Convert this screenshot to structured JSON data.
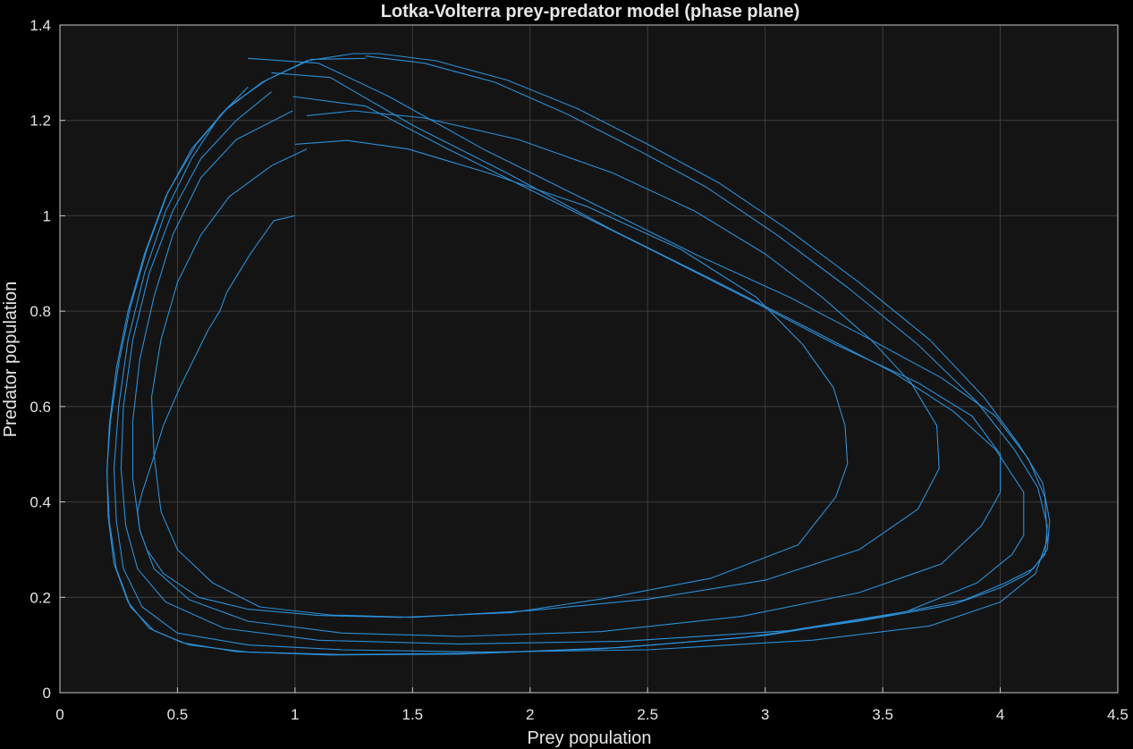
{
  "chart_data": {
    "type": "line",
    "title": "Lotka-Volterra prey-predator model (phase plane)",
    "xlabel": "Prey population",
    "ylabel": "Predator population",
    "xlim": [
      0,
      4.5
    ],
    "ylim": [
      0,
      1.4
    ],
    "xticks": [
      "0",
      "0.5",
      "1",
      "1.5",
      "2",
      "2.5",
      "3",
      "3.5",
      "4",
      "4.5"
    ],
    "yticks": [
      "0",
      "0.2",
      "0.4",
      "0.6",
      "0.8",
      "1",
      "1.2",
      "1.4"
    ],
    "grid": true,
    "legend": "none",
    "colors": {
      "background": "#000000",
      "axes_background": "#141414",
      "grid": "#3c3c3c",
      "axis_frame": "#c8c8c8",
      "series": "#2c8ed6"
    },
    "series": [
      {
        "x": [
          1.0,
          0.91,
          0.81,
          0.71,
          0.68,
          0.63,
          0.58,
          0.51,
          0.44,
          0.39,
          0.35,
          0.33,
          0.34,
          0.37,
          0.44,
          0.59,
          0.8,
          1.1,
          1.45,
          1.92,
          2.32,
          2.77,
          3.14,
          3.3,
          3.35,
          3.34,
          3.29,
          3.16,
          2.96,
          2.64,
          2.24,
          1.82,
          1.48,
          1.22,
          1.0
        ],
        "y": [
          1.0,
          0.99,
          0.92,
          0.84,
          0.8,
          0.76,
          0.71,
          0.64,
          0.56,
          0.48,
          0.42,
          0.38,
          0.34,
          0.3,
          0.25,
          0.2,
          0.175,
          0.162,
          0.158,
          0.168,
          0.198,
          0.24,
          0.31,
          0.41,
          0.48,
          0.56,
          0.64,
          0.73,
          0.83,
          0.93,
          1.02,
          1.09,
          1.14,
          1.158,
          1.15
        ]
      },
      {
        "x": [
          1.05,
          0.9,
          0.72,
          0.6,
          0.5,
          0.43,
          0.39,
          0.4,
          0.43,
          0.5,
          0.65,
          0.85,
          1.15,
          1.5,
          2.0,
          2.5,
          3.0,
          3.4,
          3.65,
          3.74,
          3.73,
          3.62,
          3.45,
          3.24,
          3.0,
          2.7,
          2.35,
          1.95,
          1.55,
          1.25,
          1.05
        ],
        "y": [
          1.14,
          1.105,
          1.04,
          0.96,
          0.86,
          0.74,
          0.62,
          0.5,
          0.38,
          0.3,
          0.23,
          0.18,
          0.163,
          0.158,
          0.172,
          0.196,
          0.236,
          0.3,
          0.385,
          0.47,
          0.56,
          0.65,
          0.74,
          0.83,
          0.92,
          1.01,
          1.09,
          1.16,
          1.205,
          1.22,
          1.21
        ]
      },
      {
        "x": [
          0.99,
          0.75,
          0.6,
          0.48,
          0.4,
          0.34,
          0.31,
          0.31,
          0.34,
          0.4,
          0.55,
          0.8,
          1.2,
          1.7,
          2.3,
          2.9,
          3.4,
          3.75,
          3.92,
          4.0,
          4.0,
          3.88,
          3.65,
          3.3,
          2.95,
          2.55,
          2.1,
          1.65,
          1.3,
          0.99
        ],
        "y": [
          1.22,
          1.16,
          1.08,
          0.96,
          0.83,
          0.7,
          0.57,
          0.45,
          0.34,
          0.26,
          0.195,
          0.15,
          0.125,
          0.118,
          0.128,
          0.16,
          0.21,
          0.27,
          0.35,
          0.42,
          0.5,
          0.58,
          0.65,
          0.73,
          0.82,
          0.92,
          1.03,
          1.14,
          1.23,
          1.25
        ]
      },
      {
        "x": [
          0.9,
          0.75,
          0.6,
          0.48,
          0.38,
          0.31,
          0.27,
          0.26,
          0.28,
          0.33,
          0.45,
          0.7,
          1.1,
          1.7,
          2.4,
          3.1,
          3.6,
          3.9,
          4.05,
          4.1,
          4.1,
          3.98,
          3.8,
          3.55,
          3.2,
          2.8,
          2.35,
          1.9,
          1.5,
          1.15,
          0.9
        ],
        "y": [
          1.26,
          1.2,
          1.12,
          1.01,
          0.88,
          0.74,
          0.6,
          0.47,
          0.35,
          0.26,
          0.19,
          0.135,
          0.11,
          0.102,
          0.108,
          0.13,
          0.17,
          0.23,
          0.29,
          0.33,
          0.42,
          0.51,
          0.59,
          0.67,
          0.76,
          0.86,
          0.97,
          1.09,
          1.19,
          1.29,
          1.3
        ]
      },
      {
        "x": [
          0.8,
          0.68,
          0.56,
          0.45,
          0.36,
          0.29,
          0.25,
          0.23,
          0.24,
          0.27,
          0.35,
          0.5,
          0.8,
          1.2,
          1.8,
          2.5,
          3.2,
          3.7,
          4.0,
          4.15,
          4.2,
          4.19,
          4.12,
          3.98,
          3.75,
          3.45,
          3.1,
          2.7,
          2.25,
          1.8,
          1.4,
          1.1,
          0.8
        ],
        "y": [
          1.27,
          1.21,
          1.12,
          1.01,
          0.88,
          0.74,
          0.6,
          0.47,
          0.36,
          0.26,
          0.18,
          0.125,
          0.1,
          0.09,
          0.085,
          0.09,
          0.11,
          0.14,
          0.19,
          0.25,
          0.32,
          0.41,
          0.49,
          0.58,
          0.66,
          0.74,
          0.83,
          0.92,
          1.03,
          1.14,
          1.25,
          1.32,
          1.33
        ]
      },
      {
        "x": [
          1.36,
          1.6,
          1.9,
          2.2,
          2.5,
          2.8,
          3.1,
          3.4,
          3.7,
          3.93,
          4.08,
          4.18,
          4.21,
          4.2,
          4.14,
          4.02,
          3.85,
          3.5,
          3.0,
          2.4,
          1.8,
          1.2,
          0.8,
          0.55,
          0.4,
          0.3,
          0.24,
          0.21,
          0.2,
          0.21,
          0.24,
          0.29,
          0.36,
          0.45,
          0.56,
          0.7,
          0.86,
          1.05,
          1.25,
          1.36
        ],
        "y": [
          1.34,
          1.325,
          1.285,
          1.225,
          1.15,
          1.07,
          0.97,
          0.86,
          0.74,
          0.62,
          0.52,
          0.44,
          0.36,
          0.3,
          0.26,
          0.23,
          0.195,
          0.16,
          0.12,
          0.095,
          0.083,
          0.08,
          0.085,
          0.1,
          0.13,
          0.18,
          0.26,
          0.36,
          0.46,
          0.56,
          0.68,
          0.8,
          0.92,
          1.04,
          1.14,
          1.22,
          1.28,
          1.325,
          1.34,
          1.34
        ]
      },
      {
        "x": [
          1.3,
          1.55,
          1.85,
          2.15,
          2.45,
          2.75,
          3.05,
          3.35,
          3.65,
          3.9,
          4.06,
          4.16,
          4.2,
          4.19,
          4.12,
          4.0,
          3.8,
          3.4,
          2.9,
          2.3,
          1.7,
          1.15,
          0.75,
          0.52,
          0.38,
          0.29,
          0.23,
          0.205,
          0.2,
          0.215,
          0.25,
          0.3,
          0.37,
          0.46,
          0.58,
          0.72,
          0.88,
          1.07,
          1.3
        ],
        "y": [
          1.335,
          1.32,
          1.28,
          1.215,
          1.14,
          1.06,
          0.96,
          0.85,
          0.73,
          0.61,
          0.51,
          0.43,
          0.35,
          0.29,
          0.25,
          0.22,
          0.185,
          0.15,
          0.115,
          0.092,
          0.081,
          0.079,
          0.086,
          0.105,
          0.135,
          0.19,
          0.27,
          0.37,
          0.47,
          0.57,
          0.69,
          0.81,
          0.93,
          1.05,
          1.15,
          1.23,
          1.285,
          1.328,
          1.33
        ]
      }
    ]
  }
}
